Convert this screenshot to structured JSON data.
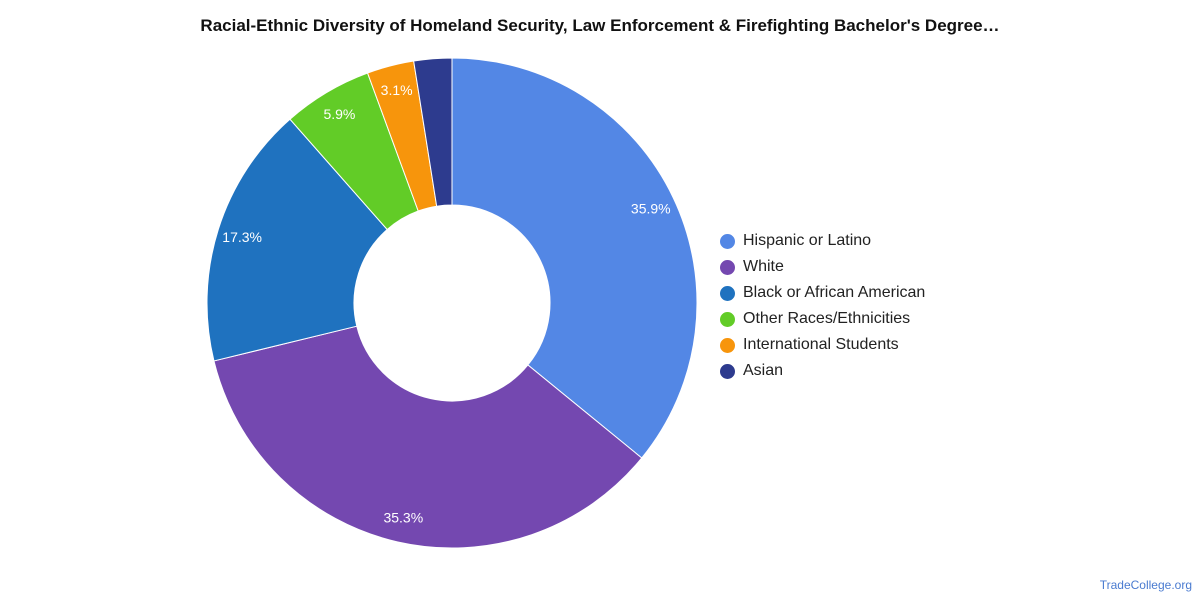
{
  "header": {
    "title": "Racial-Ethnic Diversity of Homeland Security, Law Enforcement & Firefighting Bachelor's Degree…"
  },
  "footer": {
    "source_link": "TradeCollege.org"
  },
  "chart_data": {
    "type": "pie",
    "donut": true,
    "title": "Racial-Ethnic Diversity of Homeland Security, Law Enforcement & Firefighting Bachelor's Degree…",
    "legend_position": "right",
    "slices": [
      {
        "name": "Hispanic or Latino",
        "value": 35.9,
        "label": "35.9%",
        "color": "#5387e5"
      },
      {
        "name": "White",
        "value": 35.3,
        "label": "35.3%",
        "color": "#7448b0"
      },
      {
        "name": "Black or African American",
        "value": 17.3,
        "label": "17.3%",
        "color": "#1f72bf"
      },
      {
        "name": "Other Races/Ethnicities",
        "value": 5.9,
        "label": "5.9%",
        "color": "#62cc27"
      },
      {
        "name": "International Students",
        "value": 3.1,
        "label": "3.1%",
        "color": "#f7950c"
      },
      {
        "name": "Asian",
        "value": 2.5,
        "label": "",
        "color": "#2d3b8e"
      }
    ]
  }
}
